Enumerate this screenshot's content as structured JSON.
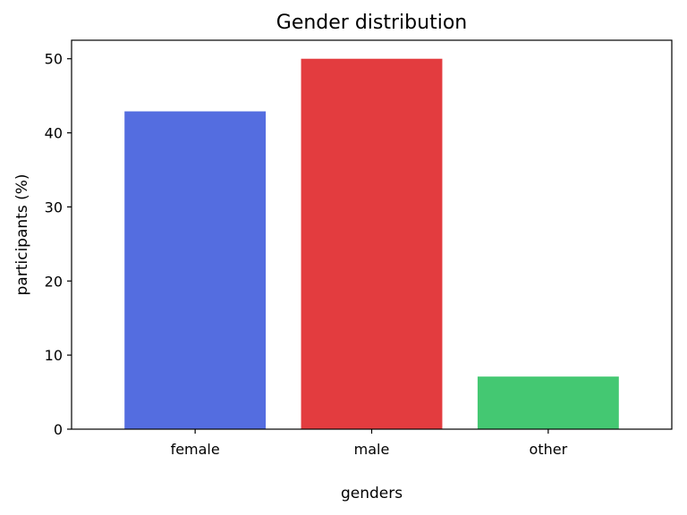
{
  "chart_data": {
    "type": "bar",
    "title": "Gender distribution",
    "xlabel": "genders",
    "ylabel": "participants (%)",
    "categories": [
      "female",
      "male",
      "other"
    ],
    "values": [
      42.9,
      50.0,
      7.1
    ],
    "colors": [
      "#546de0",
      "#e33c3f",
      "#44c872"
    ],
    "ylim": [
      0,
      52.5
    ],
    "yticks": [
      0,
      10,
      20,
      30,
      40,
      50
    ],
    "grid": false,
    "legend": "none"
  }
}
